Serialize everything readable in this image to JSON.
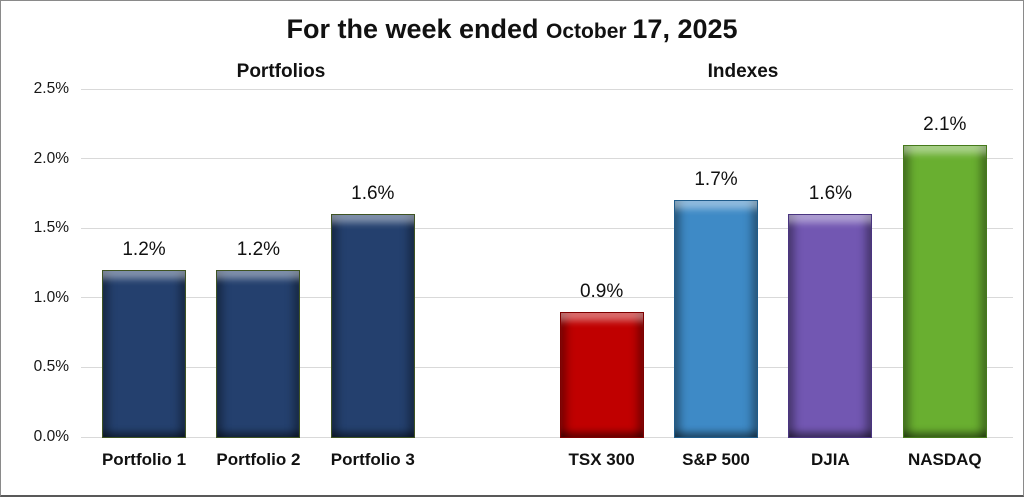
{
  "title": {
    "text": "For the week ended October 17, 2025",
    "segments": [
      {
        "text": "For the week ended ",
        "size": "large"
      },
      {
        "text": "October ",
        "size": "small"
      },
      {
        "text": "17, 2025",
        "size": "large"
      }
    ]
  },
  "chart_data": {
    "type": "bar",
    "title": "For the week ended October 17, 2025",
    "xlabel": "",
    "ylabel": "",
    "ylim": [
      0,
      2.5
    ],
    "y_ticks": [
      2.5,
      2.0,
      1.5,
      1.0,
      0.5,
      0.0
    ],
    "y_tick_labels": [
      "2.5%",
      "2.0%",
      "1.5%",
      "1.0%",
      "0.5%",
      "0.0%"
    ],
    "grid": true,
    "gridline_color": "#D9D9D9",
    "legend": "none",
    "bar_style": "3d-bevel",
    "groups": [
      {
        "label": "Portfolios",
        "bars": [
          {
            "category": "Portfolio 1",
            "value": 1.2,
            "data_label": "1.2%",
            "color": "#24406E",
            "outline": "#3F5323"
          },
          {
            "category": "Portfolio 2",
            "value": 1.2,
            "data_label": "1.2%",
            "color": "#24406E",
            "outline": "#3F5323"
          },
          {
            "category": "Portfolio 3",
            "value": 1.6,
            "data_label": "1.6%",
            "color": "#24406E",
            "outline": "#3F5323"
          }
        ]
      },
      {
        "label": "Indexes",
        "bars": [
          {
            "category": "TSX 300",
            "value": 0.9,
            "data_label": "0.9%",
            "color": "#C00000",
            "outline": "#7E0000"
          },
          {
            "category": "S&P 500",
            "value": 1.7,
            "data_label": "1.7%",
            "color": "#3E8AC6",
            "outline": "#1F5C8B"
          },
          {
            "category": "DJIA",
            "value": 1.6,
            "data_label": "1.6%",
            "color": "#7257B2",
            "outline": "#4A3580"
          },
          {
            "category": "NASDAQ",
            "value": 2.1,
            "data_label": "2.1%",
            "color": "#69AF30",
            "outline": "#457A1B"
          }
        ]
      }
    ]
  }
}
